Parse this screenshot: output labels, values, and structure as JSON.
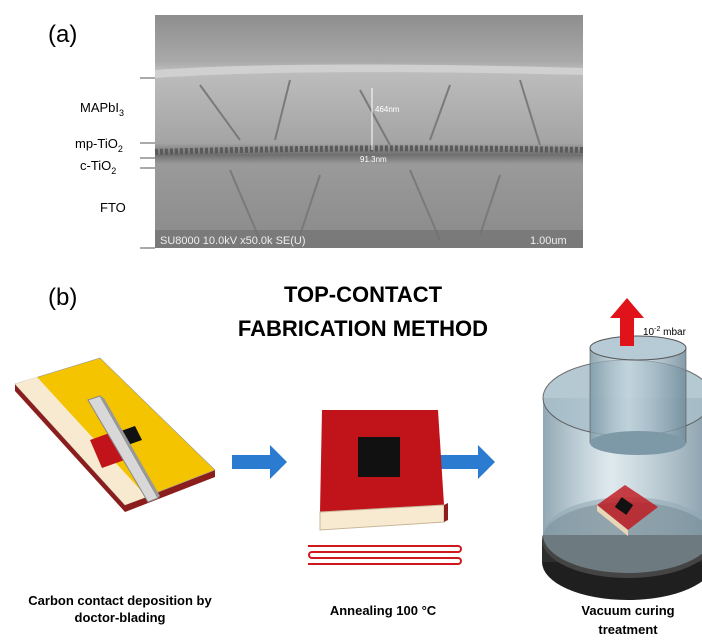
{
  "panel_a": {
    "label": "(a)",
    "layers": [
      {
        "base": "MAPbI",
        "sub": "3"
      },
      {
        "base": "mp-TiO",
        "sub": "2"
      },
      {
        "base": "c-TiO",
        "sub": "2"
      },
      {
        "base": "FTO"
      }
    ],
    "measurements": [
      "464nm",
      "91.3nm"
    ],
    "info_bar": "SU8000 10.0kV x50.0k SE(U)",
    "scale": "1.00um"
  },
  "panel_b": {
    "label": "(b)",
    "title_lines": [
      "TOP-CONTACT",
      "FABRICATION METHOD"
    ],
    "pressure": {
      "base": "10",
      "sup": "-2",
      "unit": " mbar"
    },
    "steps": [
      {
        "lines": [
          "Carbon contact deposition by",
          "doctor-blading"
        ]
      },
      {
        "lines": [
          "Annealing 100 °C"
        ]
      },
      {
        "lines": [
          "Vacuum curing",
          "treatment"
        ]
      }
    ]
  }
}
